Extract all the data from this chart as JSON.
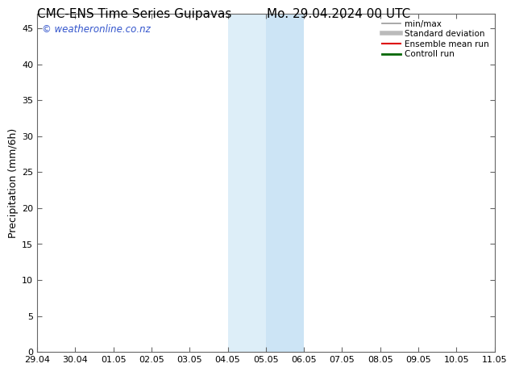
{
  "title_left": "CMC-ENS Time Series Guipavas",
  "title_right": "Mo. 29.04.2024 00 UTC",
  "ylabel": "Precipitation (mm/6h)",
  "ylim": [
    0,
    47
  ],
  "yticks": [
    0,
    5,
    10,
    15,
    20,
    25,
    30,
    35,
    40,
    45
  ],
  "xlabel_dates": [
    "29.04",
    "30.04",
    "01.05",
    "02.05",
    "03.05",
    "04.05",
    "05.05",
    "06.05",
    "07.05",
    "08.05",
    "09.05",
    "10.05",
    "11.05"
  ],
  "shade_regions": [
    {
      "xmin": 5,
      "xmax": 6,
      "color": "#ddeef8"
    },
    {
      "xmin": 6,
      "xmax": 7,
      "color": "#cce4f5"
    },
    {
      "xmin": 12,
      "xmax": 12.5,
      "color": "#ddeef8"
    }
  ],
  "bg_color": "#ffffff",
  "plot_bg_color": "#f0f7ff",
  "watermark": "© weatheronline.co.nz",
  "watermark_color": "#3355cc",
  "legend_items": [
    {
      "label": "min/max",
      "color": "#999999",
      "lw": 1.2
    },
    {
      "label": "Standard deviation",
      "color": "#bbbbbb",
      "lw": 4
    },
    {
      "label": "Ensemble mean run",
      "color": "#dd0000",
      "lw": 1.5
    },
    {
      "label": "Controll run",
      "color": "#006600",
      "lw": 2
    }
  ],
  "title_fontsize": 11,
  "tick_fontsize": 8,
  "ylabel_fontsize": 9
}
